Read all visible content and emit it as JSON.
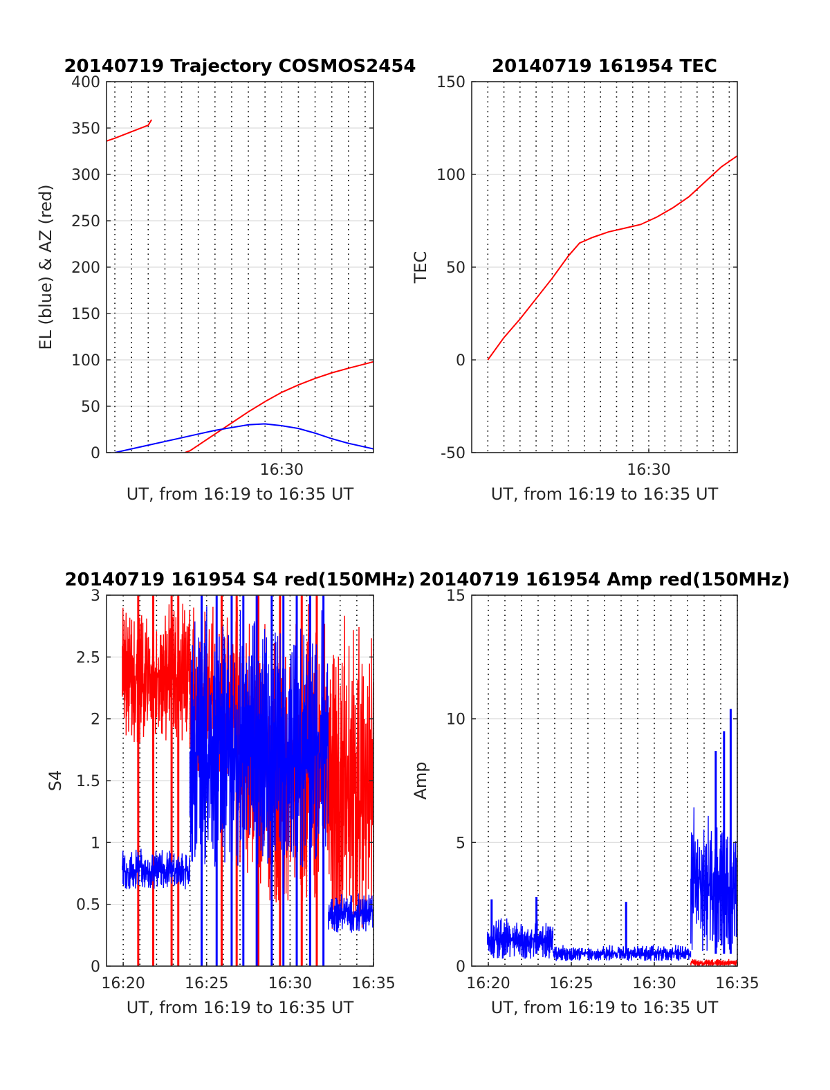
{
  "chart_data": [
    {
      "type": "line",
      "title": "20140719 Trajectory COSMOS2454",
      "xlabel": "UT, from 16:19 to 16:35 UT",
      "ylabel": "EL (blue) & AZ (red)",
      "xlim": [
        "16:20",
        "16:35.5"
      ],
      "ylim": [
        0,
        400
      ],
      "yticks": [
        "0",
        "50",
        "100",
        "150",
        "200",
        "250",
        "300",
        "350",
        "400"
      ],
      "xticks": [
        "16:30"
      ],
      "grid": "dotted vertical every 1 min, horizontal at y ticks",
      "series": [
        {
          "color": "#ff0000",
          "x": [
            16.0,
            17.0,
            18.0,
            19.0,
            20.0,
            21.0,
            22.0,
            22.2
          ],
          "x_note": "",
          "y": [
            318,
            322,
            327,
            333,
            339,
            346,
            353,
            359
          ]
        },
        {
          "color": "#ff0000",
          "x": [
            24.2,
            24.5,
            25.0,
            26.0,
            27.0,
            28.0,
            29.0,
            30.0,
            31.0,
            32.0,
            33.0,
            34.0,
            35.5
          ],
          "y": [
            0,
            2,
            8,
            20,
            32,
            44,
            55,
            65,
            73,
            80,
            86,
            91,
            98
          ]
        },
        {
          "color": "#0000ff",
          "x": [
            20.0,
            21.0,
            22.0,
            23.0,
            24.0,
            25.0,
            26.0,
            27.0,
            28.0,
            29.0,
            30.0,
            31.0,
            32.0,
            33.0,
            34.0,
            35.5
          ],
          "y": [
            0,
            4,
            8,
            12,
            16,
            20,
            24,
            27,
            30,
            31,
            29,
            26,
            21,
            15,
            10,
            4
          ]
        }
      ]
    },
    {
      "type": "line",
      "title": "20140719 161954 TEC",
      "xlabel": "UT, from 16:19 to 16:35 UT",
      "ylabel": "TEC",
      "xlim": [
        "16:20",
        "16:35.5"
      ],
      "ylim": [
        -50,
        150
      ],
      "yticks": [
        "-50",
        "0",
        "50",
        "100",
        "150"
      ],
      "xticks": [
        "16:30"
      ],
      "grid": "dotted vertical every 1 min, horizontal at y ticks",
      "series": [
        {
          "color": "#ff0000",
          "x": [
            20.0,
            20.5,
            21.0,
            22.0,
            23.0,
            24.0,
            25.0,
            25.7,
            26.5,
            27.5,
            28.5,
            29.5,
            30.5,
            31.5,
            32.5,
            33.5,
            34.5,
            35.5
          ],
          "y": [
            0,
            6,
            12,
            22,
            33,
            44,
            56,
            63,
            66,
            69,
            71,
            73,
            77,
            82,
            88,
            96,
            104,
            110
          ]
        }
      ]
    },
    {
      "type": "line",
      "title": "20140719 161954 S4 red(150MHz)",
      "xlabel": "UT, from 16:19 to 16:35 UT",
      "ylabel": "S4",
      "xlim": [
        "16:19",
        "16:35"
      ],
      "ylim": [
        0,
        3
      ],
      "yticks": [
        "0",
        "0.5",
        "1",
        "1.5",
        "2",
        "2.5",
        "3"
      ],
      "xticks": [
        "16:20",
        "16:25",
        "16:30",
        "16:35"
      ],
      "grid": "dotted vertical every 1 min, horizontal at y ticks",
      "series": [
        {
          "color": "#ff0000",
          "segments": [
            {
              "x": [
                19.95,
                24.0
              ],
              "y_low": 1.8,
              "y_high": 3.0
            },
            {
              "x": [
                24.0,
                27.0
              ],
              "y_low": 1.5,
              "y_high": 3.0
            },
            {
              "x": [
                27.0,
                32.3
              ],
              "y_low": 0.5,
              "y_high": 3.0
            },
            {
              "x": [
                32.3,
                35.0
              ],
              "y_low": 0.3,
              "y_high": 3.0
            }
          ],
          "dropouts": [
            20.9,
            21.8,
            22.9,
            23.3,
            25.9,
            26.8,
            28.1,
            29.4,
            30.7,
            31.6
          ]
        },
        {
          "color": "#0000ff",
          "segments": [
            {
              "x": [
                19.95,
                24.0
              ],
              "y_low": 0.62,
              "y_high": 0.98
            },
            {
              "x": [
                24.0,
                32.3
              ],
              "y_low": 0.8,
              "y_high": 3.0
            },
            {
              "x": [
                32.3,
                35.0
              ],
              "y_low": 0.27,
              "y_high": 0.62
            }
          ],
          "dropouts": [
            24.7,
            25.6,
            26.5,
            27.2,
            28.0,
            28.9,
            29.6,
            30.4,
            31.2,
            32.0
          ]
        }
      ]
    },
    {
      "type": "line",
      "title": "20140719 161954 Amp red(150MHz)",
      "xlabel": "UT, from 16:19 to 16:35 UT",
      "ylabel": "Amp",
      "xlim": [
        "16:19",
        "16:35"
      ],
      "ylim": [
        0,
        15
      ],
      "yticks": [
        "0",
        "5",
        "10",
        "15"
      ],
      "xticks": [
        "16:20",
        "16:25",
        "16:30",
        "16:35"
      ],
      "grid": "dotted vertical every 1 min, horizontal at y ticks",
      "series": [
        {
          "color": "#ff0000",
          "segments": [
            {
              "x": [
                32.2,
                35.0
              ],
              "y_low": 0.0,
              "y_high": 0.3
            }
          ]
        },
        {
          "color": "#0000ff",
          "segments": [
            {
              "x": [
                19.95,
                23.9
              ],
              "y_low": 0.3,
              "y_high": 2.0
            },
            {
              "x": [
                23.9,
                32.2
              ],
              "y_low": 0.2,
              "y_high": 0.9
            },
            {
              "x": [
                32.2,
                35.0
              ],
              "y_low": 0.5,
              "y_high": 6.8
            }
          ],
          "spikes": [
            {
              "x": 20.2,
              "y": 2.7
            },
            {
              "x": 22.9,
              "y": 2.8
            },
            {
              "x": 28.3,
              "y": 2.6
            },
            {
              "x": 33.7,
              "y": 8.7
            },
            {
              "x": 34.2,
              "y": 9.5
            },
            {
              "x": 34.6,
              "y": 10.4
            }
          ]
        }
      ]
    }
  ]
}
